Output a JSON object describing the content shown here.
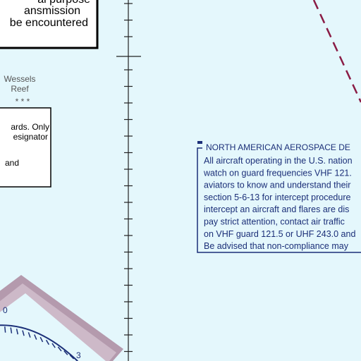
{
  "top_box": {
    "lines": [
      "al purpose",
      "ansmission",
      "be encountered"
    ]
  },
  "reef": {
    "lines": [
      "Wessels",
      "Reef"
    ],
    "symbols": "* * *"
  },
  "mid_box": {
    "lines": [
      "ards. Only",
      "esignator",
      "and"
    ]
  },
  "norad": {
    "title": "NORTH AMERICAN AEROSPACE DE",
    "lines": [
      "All aircraft operating in the U.S. nation",
      "watch on guard frequencies VHF 121.",
      "aviators to know and understand their",
      "section 5-6-13 for intercept procedure",
      "intercept an aircraft and flares are dis",
      "pay strict attention, contact air traffic",
      "on VHF guard 121.5 or UHF 243.0 and",
      "Be advised that non-compliance may"
    ]
  },
  "compass": {
    "labels": [
      "0",
      "3"
    ]
  }
}
